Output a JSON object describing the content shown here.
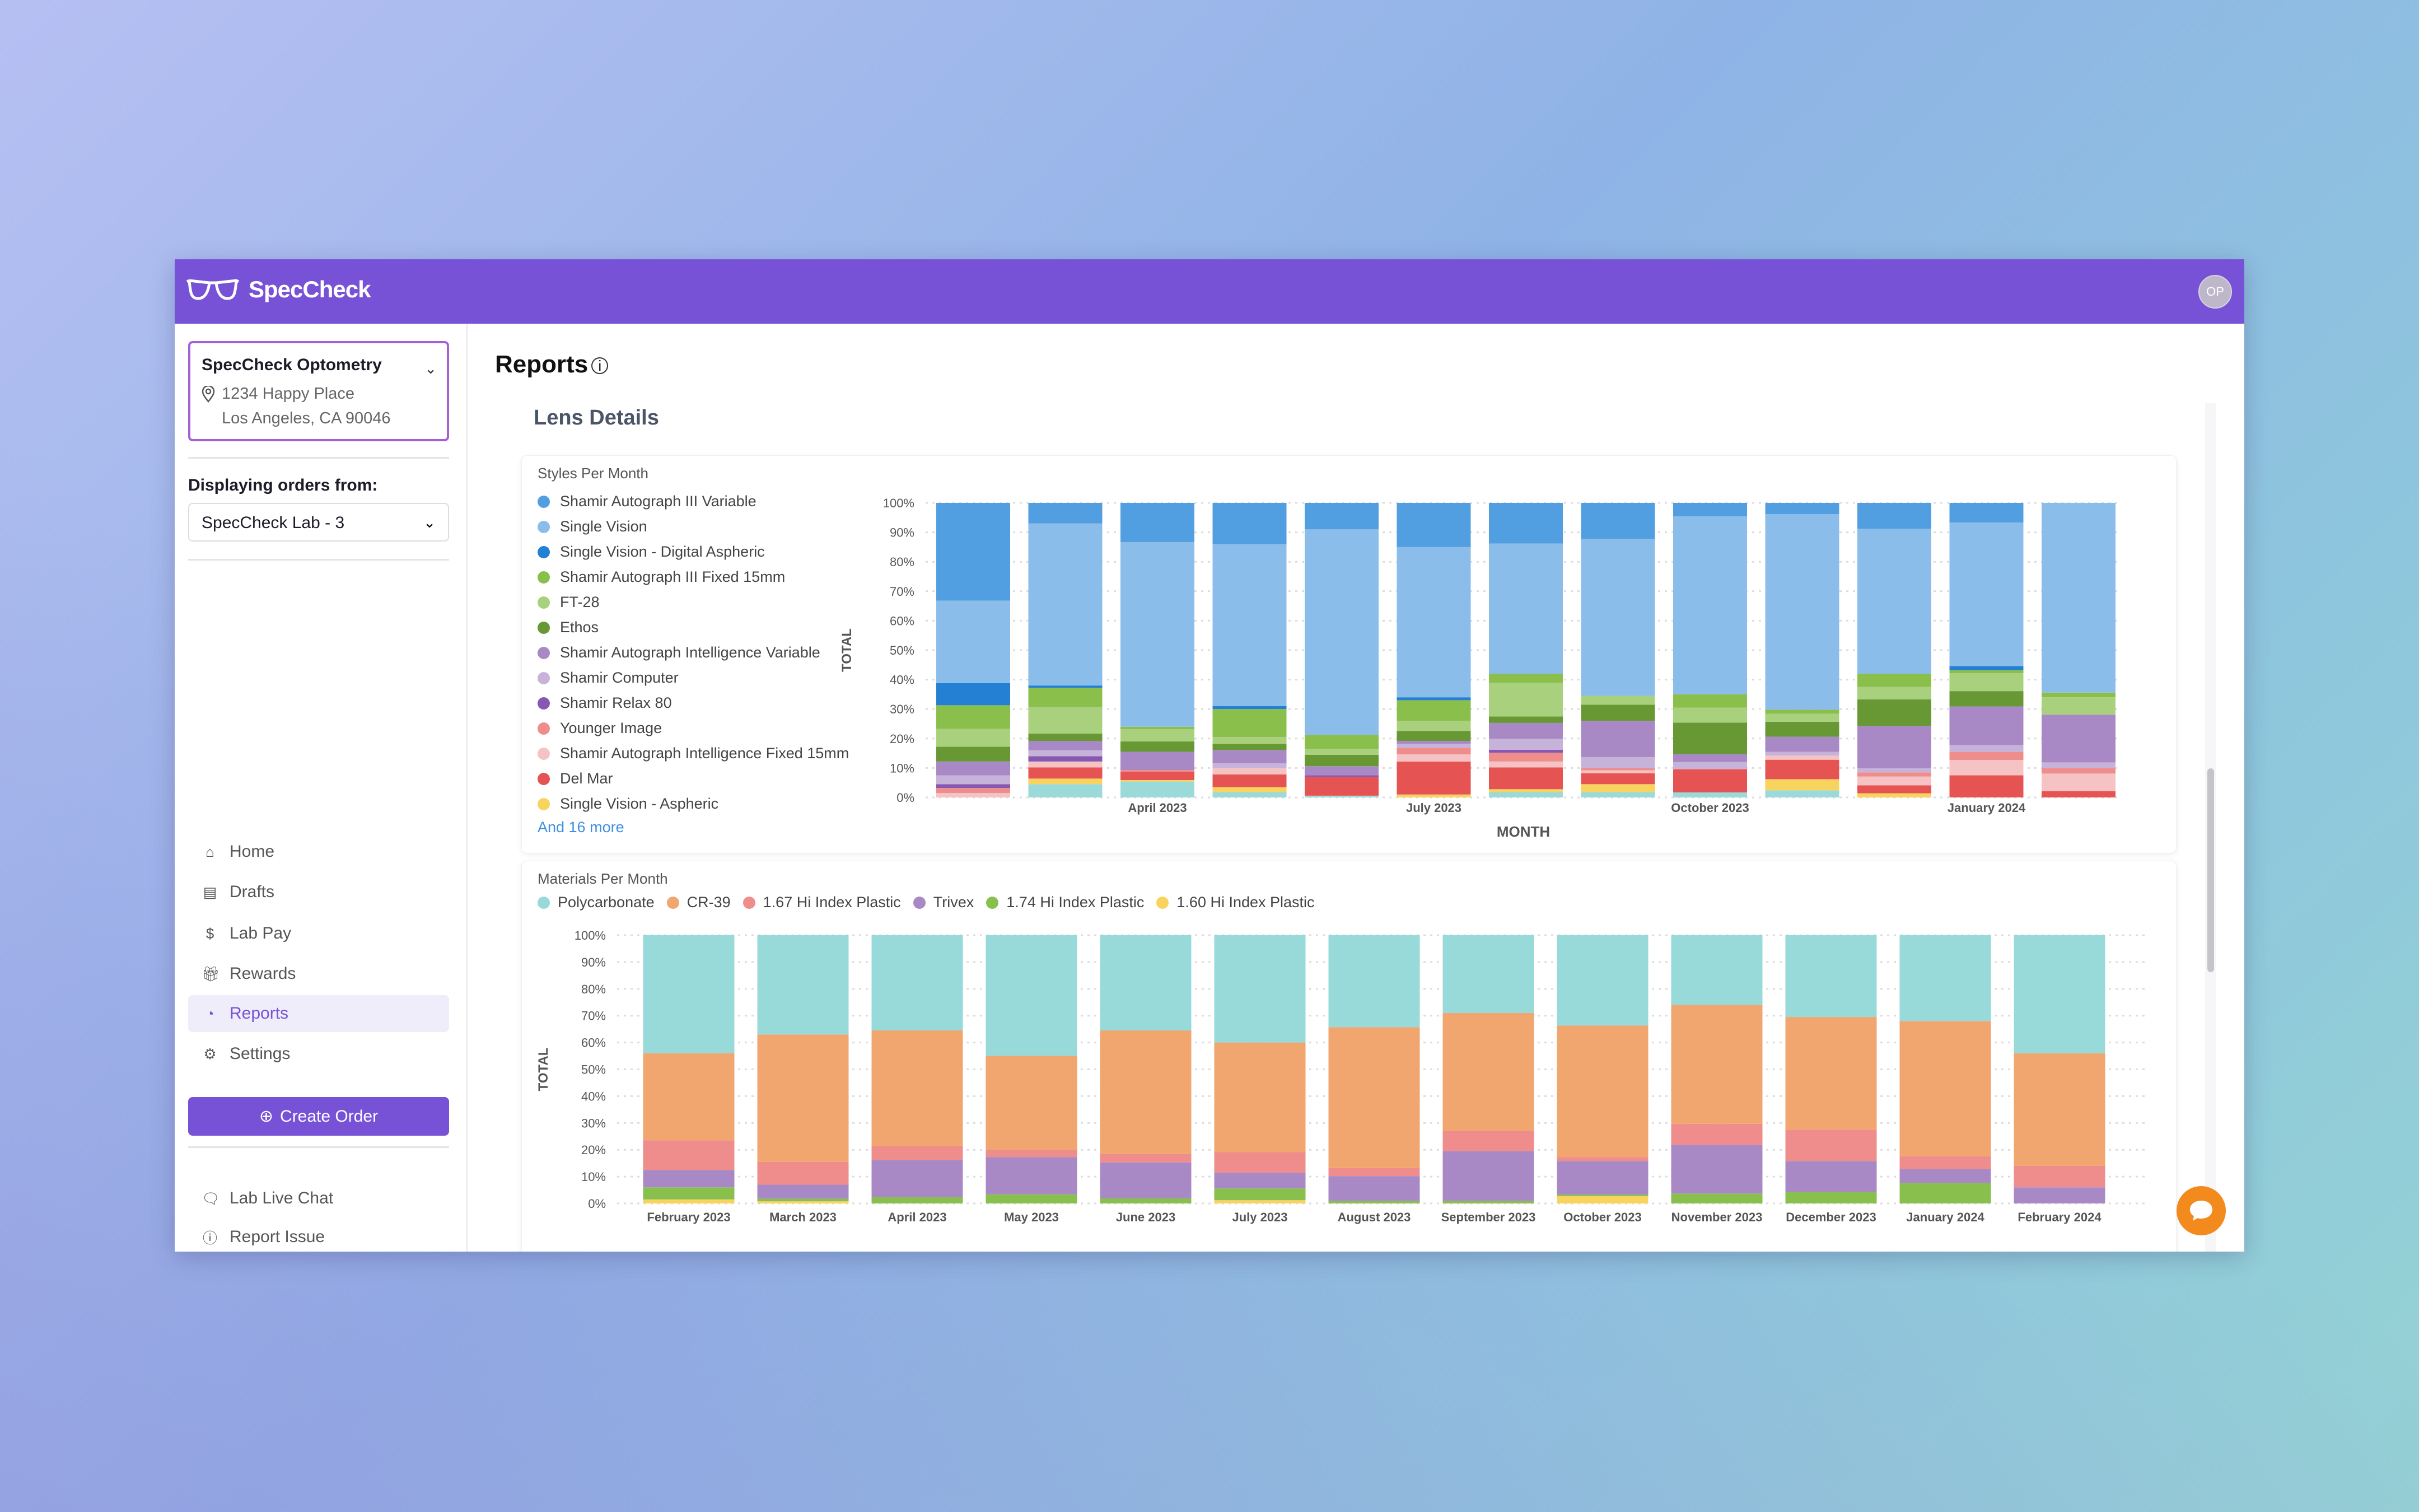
{
  "header": {
    "logo_text": "SpecCheck",
    "avatar_initials": "OP",
    "brand_color": "#7752d6"
  },
  "sidebar": {
    "location": {
      "name": "SpecCheck Optometry",
      "address_line1": "1234 Happy Place",
      "address_line2": "Los Angeles, CA 90046"
    },
    "displaying_label": "Displaying orders from:",
    "lab_select_value": "SpecCheck Lab - 3",
    "nav": [
      {
        "label": "Home",
        "icon": "home-icon"
      },
      {
        "label": "Drafts",
        "icon": "archive-icon"
      },
      {
        "label": "Lab Pay",
        "icon": "dollar-icon"
      },
      {
        "label": "Rewards",
        "icon": "gift-icon"
      },
      {
        "label": "Reports",
        "icon": "pie-chart-icon",
        "active": true
      },
      {
        "label": "Settings",
        "icon": "gear-icon"
      }
    ],
    "create_order_label": "Create Order",
    "footer": [
      {
        "label": "Lab Live Chat",
        "icon": "chat-icon"
      },
      {
        "label": "Report Issue",
        "icon": "help-icon"
      }
    ]
  },
  "main": {
    "title": "Reports",
    "section_title": "Lens Details"
  },
  "chart_data": [
    {
      "type": "bar",
      "stacked": true,
      "title": "Styles Per Month",
      "xlabel": "MONTH",
      "ylabel": "TOTAL",
      "ylim": [
        0,
        100
      ],
      "grid": true,
      "legend": "left",
      "y_ticks": [
        "0%",
        "10%",
        "20%",
        "30%",
        "40%",
        "50%",
        "60%",
        "70%",
        "80%",
        "90%",
        "100%"
      ],
      "x_tick_labels": [
        {
          "label": "April 2023",
          "index": 2
        },
        {
          "label": "July 2023",
          "index": 5
        },
        {
          "label": "October 2023",
          "index": 8
        },
        {
          "label": "January 2024",
          "index": 11
        }
      ],
      "legend_more": "And 16 more",
      "series": [
        {
          "name": "Shamir Autograph III Variable",
          "color": "#519fe0",
          "values": [
            33.2,
            7,
            13.3,
            14,
            9,
            15,
            13.8,
            12.2,
            4.6,
            3.8,
            8.8,
            6.7,
            0
          ]
        },
        {
          "name": "Single Vision",
          "color": "#8bbdea",
          "values": [
            28,
            55,
            62.7,
            55,
            69.7,
            51,
            44.2,
            53.3,
            60.4,
            66.4,
            49.2,
            48.7,
            64.4
          ]
        },
        {
          "name": "Single Vision - Digital Aspheric",
          "color": "#2480d2",
          "values": [
            7.5,
            0.8,
            0,
            1,
            0,
            1,
            0,
            0,
            0,
            0,
            0,
            1.4,
            0
          ]
        },
        {
          "name": "Shamir Autograph III Fixed 15mm",
          "color": "#8bbf4c",
          "values": [
            8,
            6.5,
            0.8,
            9.5,
            4.8,
            7,
            3.1,
            0,
            4.5,
            1.4,
            4.5,
            1,
            1.6
          ]
        },
        {
          "name": "FT-28",
          "color": "#a9d17d",
          "values": [
            6.1,
            9,
            4.2,
            2.3,
            2,
            3.4,
            11.4,
            3,
            5.1,
            2.7,
            4.2,
            6.1,
            5.9
          ]
        },
        {
          "name": "Ethos",
          "color": "#689834",
          "values": [
            5,
            2.5,
            3.5,
            2.1,
            3.9,
            3.4,
            2.2,
            5.5,
            10.7,
            5.1,
            9,
            5.2,
            0
          ]
        },
        {
          "name": "Shamir Autograph Intelligence Variable",
          "color": "#a889c5",
          "values": [
            4.7,
            3.2,
            6.2,
            4.5,
            3.1,
            1,
            5.4,
            12.3,
            2.7,
            5.1,
            14.4,
            13.1,
            16.2
          ]
        },
        {
          "name": "Shamir Computer",
          "color": "#c7b2da",
          "values": [
            3,
            2,
            0,
            1.6,
            0,
            1.4,
            3.7,
            3.7,
            2.3,
            1.3,
            1.4,
            2.4,
            2
          ]
        },
        {
          "name": "Shamir Relax 80",
          "color": "#8758b1",
          "values": [
            1.3,
            1.8,
            0,
            0,
            0.5,
            0,
            1,
            0,
            0,
            0,
            0,
            0,
            0
          ]
        },
        {
          "name": "Younger Image",
          "color": "#ef8c8c",
          "values": [
            1.7,
            0,
            0.5,
            0,
            0,
            2.2,
            3,
            0.8,
            0.2,
            0,
            1.4,
            2.7,
            1.8
          ]
        },
        {
          "name": "Shamir Autograph Intelligence Fixed 15mm",
          "color": "#f5c3c3",
          "values": [
            1.5,
            2,
            0,
            2.2,
            0,
            2.4,
            2,
            1,
            0,
            1.4,
            3,
            5.2,
            6
          ]
        },
        {
          "name": "Del Mar",
          "color": "#e55353",
          "values": [
            0,
            3.8,
            2.9,
            4.3,
            6.4,
            11.2,
            7.4,
            3.7,
            7.8,
            6.6,
            2.7,
            7.5,
            2.1
          ]
        },
        {
          "name": "Single Vision - Aspheric",
          "color": "#f8d35e",
          "values": [
            0,
            1.9,
            0.5,
            1.7,
            0,
            1,
            1,
            2.7,
            0,
            3.8,
            1.4,
            0,
            0
          ]
        },
        {
          "color": "#9bdad9",
          "values": [
            0,
            4.5,
            5.4,
            1.8,
            0.6,
            0,
            1.8,
            1.8,
            1.7,
            2.4,
            0,
            0,
            0
          ]
        }
      ]
    },
    {
      "type": "bar",
      "stacked": true,
      "title": "Materials Per Month",
      "xlabel": "",
      "ylabel": "TOTAL",
      "ylim": [
        0,
        100
      ],
      "grid": true,
      "legend": "top",
      "y_ticks": [
        "0%",
        "10%",
        "20%",
        "30%",
        "40%",
        "50%",
        "60%",
        "70%",
        "80%",
        "90%",
        "100%"
      ],
      "categories": [
        "February 2023",
        "March 2023",
        "April 2023",
        "May 2023",
        "June 2023",
        "July 2023",
        "August 2023",
        "September 2023",
        "October 2023",
        "November 2023",
        "December 2023",
        "January 2024",
        "February 2024"
      ],
      "series": [
        {
          "name": "Polycarbonate",
          "color": "#98d9d9",
          "values": [
            44,
            37,
            35.5,
            45,
            35.5,
            40,
            34.3,
            29,
            33.7,
            26,
            30.5,
            32,
            44
          ]
        },
        {
          "name": "CR-39",
          "color": "#f1a66f",
          "values": [
            32.5,
            47.5,
            43.2,
            35,
            46.1,
            40.9,
            52.5,
            44,
            49,
            44.3,
            42,
            50.4,
            42
          ]
        },
        {
          "name": "1.67 Hi Index Plastic",
          "color": "#ef8c8c",
          "values": [
            11,
            8.5,
            5.1,
            2.7,
            3.1,
            7.7,
            3,
            7.5,
            1.5,
            7.9,
            11.7,
            4.8,
            8
          ]
        },
        {
          "name": "Trivex",
          "color": "#a889c5",
          "values": [
            6.5,
            5.2,
            13.9,
            13.9,
            13.4,
            5.8,
            9.3,
            18.6,
            12.5,
            18.1,
            11.6,
            5.2,
            6
          ]
        },
        {
          "name": "1.74 Hi Index Plastic",
          "color": "#88bf4d",
          "values": [
            4.5,
            1,
            2.3,
            3.4,
            1.9,
            4.4,
            0.9,
            0.9,
            0.6,
            3.7,
            4.2,
            7.6,
            0
          ]
        },
        {
          "name": "1.60 Hi Index Plastic",
          "color": "#f8d35e",
          "values": [
            1.5,
            0.8,
            0,
            0,
            0,
            1.2,
            0,
            0,
            2.7,
            0,
            0,
            0,
            0
          ]
        }
      ]
    }
  ]
}
